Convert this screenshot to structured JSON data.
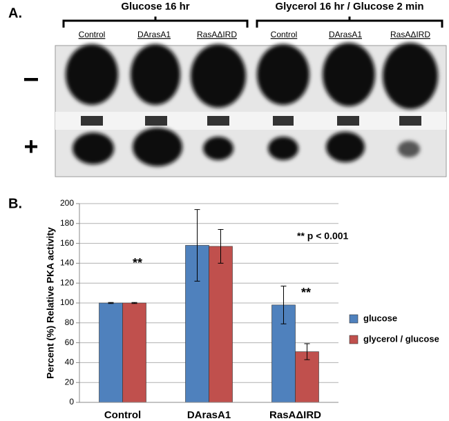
{
  "panel_a": {
    "label": "A.",
    "groups": [
      "Glucose 16 hr",
      "Glycerol 16 hr / Glucose 2 min"
    ],
    "lanes": [
      "Control",
      "DArasA1",
      "RasAΔIRD",
      "Control",
      "DArasA1",
      "RasAΔIRD"
    ],
    "rows": [
      "−",
      "+"
    ]
  },
  "chart_data": {
    "type": "bar",
    "panel_label": "B.",
    "ylabel": "Percent (%) Relative PKA activity",
    "categories": [
      "Control",
      "DArasA1",
      "RasAΔIRD"
    ],
    "series": [
      {
        "name": "glucose",
        "color": "#4f81bd",
        "values": [
          100,
          158,
          98
        ],
        "errors": [
          0.5,
          36,
          19
        ]
      },
      {
        "name": "glycerol / glucose",
        "color": "#c0504d",
        "values": [
          100,
          157,
          51
        ],
        "errors": [
          0.5,
          17,
          8
        ]
      }
    ],
    "ylim": [
      0,
      200
    ],
    "yticks": [
      0,
      20,
      40,
      60,
      80,
      100,
      120,
      140,
      160,
      180,
      200
    ],
    "grid": true,
    "annotations": [
      "**",
      "**",
      "** p < 0.001"
    ],
    "legend": "right"
  }
}
